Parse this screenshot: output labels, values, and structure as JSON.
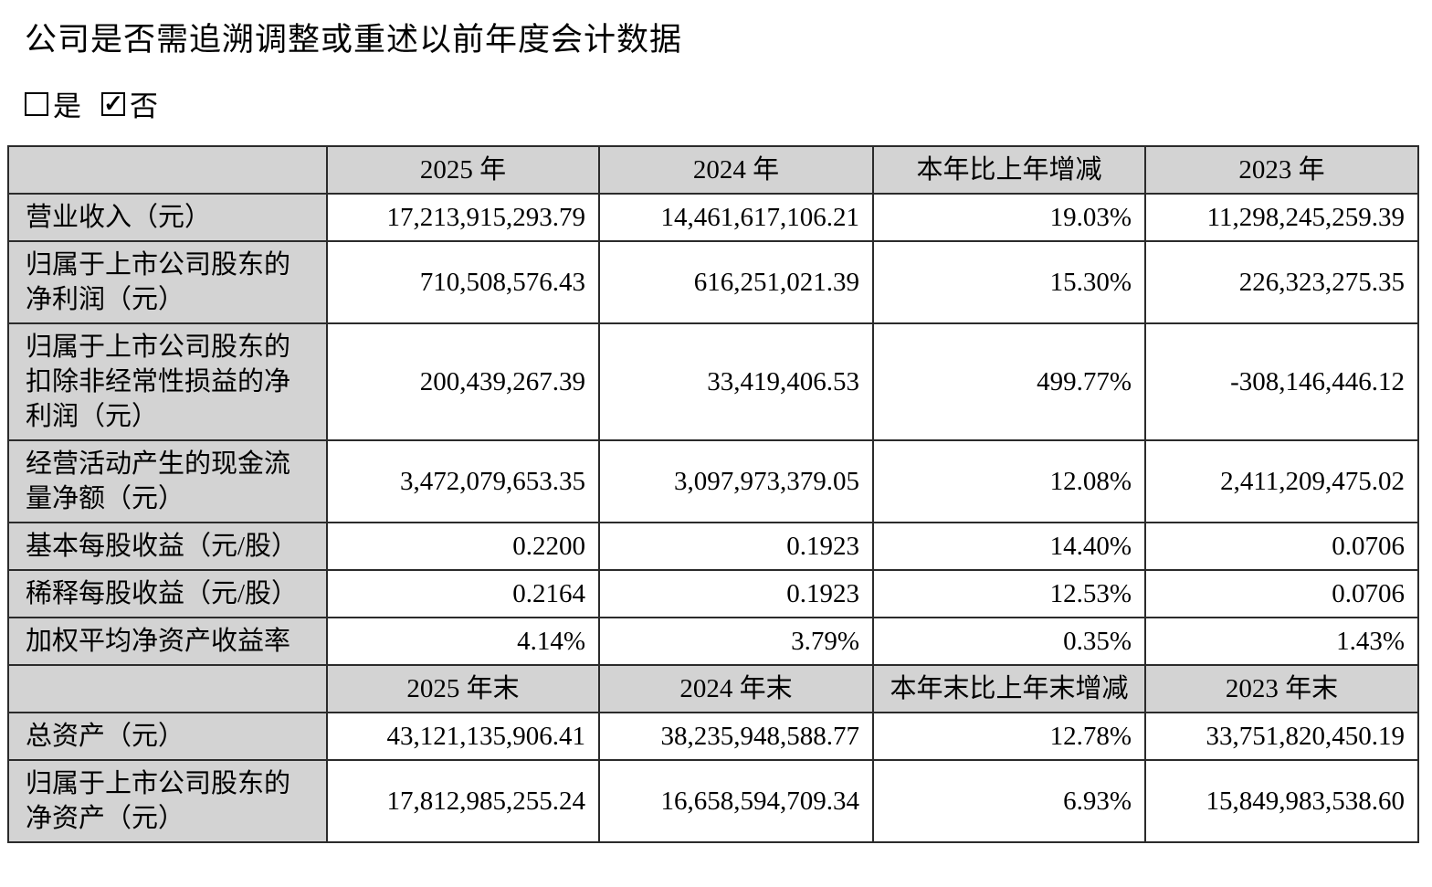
{
  "page": {
    "title": "公司是否需追溯调整或重述以前年度会计数据",
    "checkboxes": {
      "yes_label": "是",
      "yes_checked": false,
      "no_label": "否",
      "no_checked": true,
      "checkmark_glyph": "✓"
    }
  },
  "colors": {
    "header_bg": "#d3d3d3",
    "border": "#2b2b2b",
    "text": "#000000"
  },
  "table": {
    "rows": [
      {
        "type": "header",
        "cells": [
          "",
          "2025 年",
          "2024 年",
          "本年比上年增减",
          "2023 年"
        ]
      },
      {
        "type": "data",
        "cells": [
          "营业收入（元）",
          "17,213,915,293.79",
          "14,461,617,106.21",
          "19.03%",
          "11,298,245,259.39"
        ]
      },
      {
        "type": "data",
        "cells": [
          "归属于上市公司股东的\n净利润（元）",
          "710,508,576.43",
          "616,251,021.39",
          "15.30%",
          "226,323,275.35"
        ]
      },
      {
        "type": "data",
        "cells": [
          "归属于上市公司股东的\n扣除非经常性损益的净\n利润（元）",
          "200,439,267.39",
          "33,419,406.53",
          "499.77%",
          "-308,146,446.12"
        ]
      },
      {
        "type": "data",
        "cells": [
          "经营活动产生的现金流\n量净额（元）",
          "3,472,079,653.35",
          "3,097,973,379.05",
          "12.08%",
          "2,411,209,475.02"
        ]
      },
      {
        "type": "data",
        "cells": [
          "基本每股收益（元/股）",
          "0.2200",
          "0.1923",
          "14.40%",
          "0.0706"
        ]
      },
      {
        "type": "data",
        "cells": [
          "稀释每股收益（元/股）",
          "0.2164",
          "0.1923",
          "12.53%",
          "0.0706"
        ]
      },
      {
        "type": "data",
        "cells": [
          "加权平均净资产收益率",
          "4.14%",
          "3.79%",
          "0.35%",
          "1.43%"
        ]
      },
      {
        "type": "header",
        "cells": [
          "",
          "2025 年末",
          "2024 年末",
          "本年末比上年末增减",
          "2023 年末"
        ]
      },
      {
        "type": "data",
        "cells": [
          "总资产（元）",
          "43,121,135,906.41",
          "38,235,948,588.77",
          "12.78%",
          "33,751,820,450.19"
        ]
      },
      {
        "type": "data",
        "cells": [
          "归属于上市公司股东的\n净资产（元）",
          "17,812,985,255.24",
          "16,658,594,709.34",
          "6.93%",
          "15,849,983,538.60"
        ]
      }
    ]
  }
}
